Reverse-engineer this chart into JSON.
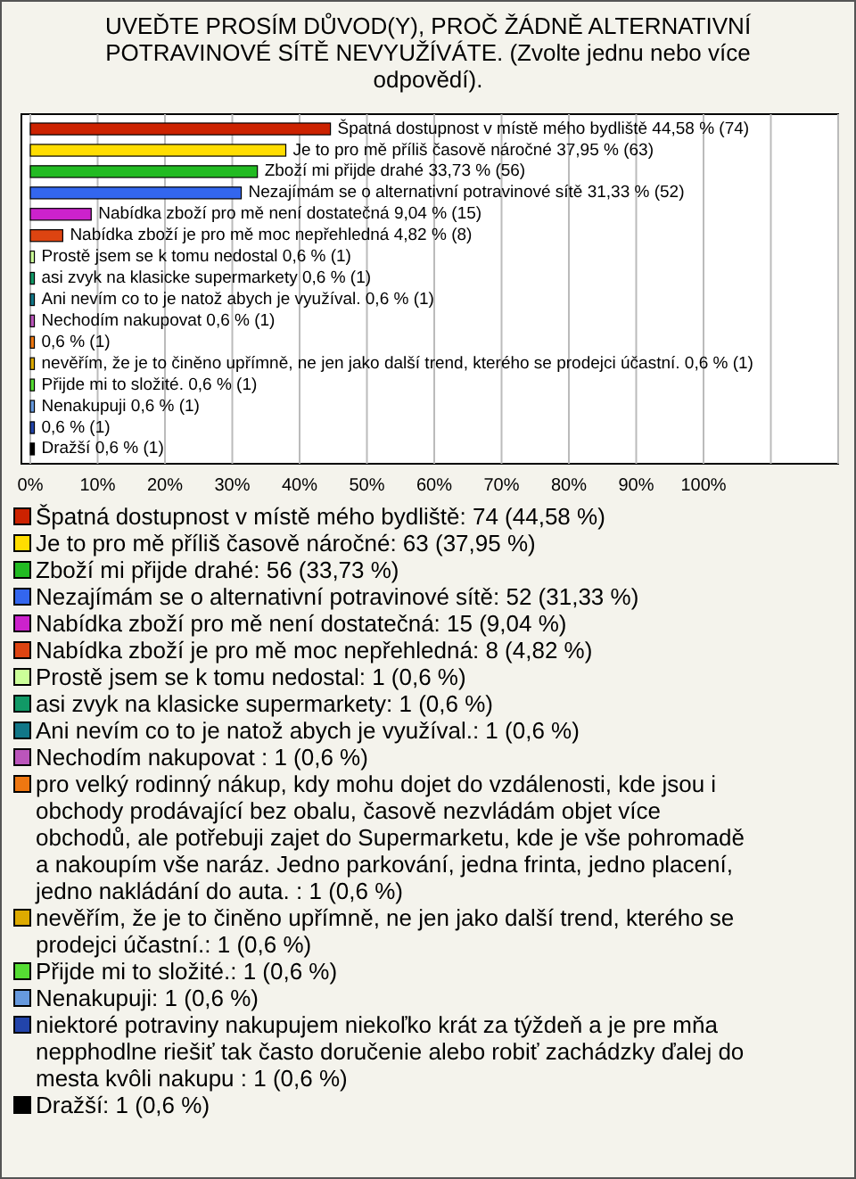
{
  "chart_data": {
    "type": "bar",
    "orientation": "horizontal",
    "title": "UVEĎTE PROSÍM DŮVOD(Y), PROČ ŽÁDNĚ ALTERNATIVNÍ POTRAVINOVÉ SÍTĚ NEVYUŽÍVÁTE. (Zvolte jednu nebo více odpovědí).",
    "categories": [
      "Špatná dostupnost v místě mého bydliště",
      "Je to pro mě příliš časově náročné",
      "Zboží mi přijde drahé",
      "Nezajímám se o alternativní potravinové sítě",
      "Nabídka zboží pro mě není dostatečná",
      "Nabídka zboží je pro mě moc nepřehledná",
      "Prostě jsem se k tomu nedostal",
      "asi zvyk na klasicke supermarkety",
      "Ani nevím co to je natož abych je využíval.",
      "Nechodím nakupovat",
      null,
      "nevěřím, že je to činěno upřímně, ne jen jako další trend, kterého se prodejci účastní.",
      "Přijde mi to složité.",
      "Nenakupuji",
      null,
      "Dražší"
    ],
    "values": [
      44.58,
      37.95,
      33.73,
      31.33,
      9.04,
      4.82,
      0.6,
      0.6,
      0.6,
      0.6,
      0.6,
      0.6,
      0.6,
      0.6,
      0.6,
      0.6
    ],
    "value_labels": [
      "44,58 % (74)",
      "37,95 % (63)",
      "33,73 % (56)",
      "31,33 % (52)",
      "9,04 % (15)",
      "4,82 % (8)",
      "0,6 % (1)",
      "0,6 % (1)",
      "0,6 % (1)",
      "0,6 % (1)",
      "0,6 % (1)",
      "0,6 % (1)",
      "0,6 % (1)",
      "0,6 % (1)",
      "0,6 % (1)",
      "0,6 % (1)"
    ],
    "colors": [
      "#cc2200",
      "#ffdd00",
      "#22bb22",
      "#3366ee",
      "#cc22cc",
      "#dd4411",
      "#ccff99",
      "#119966",
      "#117788",
      "#bb55bb",
      "#ee7711",
      "#ddaa00",
      "#55dd33",
      "#6699dd",
      "#2244aa",
      "#000000"
    ],
    "xlim": [
      0,
      120
    ],
    "xticks": [
      {
        "value": 0,
        "label": "0%"
      },
      {
        "value": 10,
        "label": "10%"
      },
      {
        "value": 20,
        "label": "20%"
      },
      {
        "value": 30,
        "label": "30%"
      },
      {
        "value": 40,
        "label": "40%"
      },
      {
        "value": 50,
        "label": "50%"
      },
      {
        "value": 60,
        "label": "60%"
      },
      {
        "value": 70,
        "label": "70%"
      },
      {
        "value": 80,
        "label": "80%"
      },
      {
        "value": 90,
        "label": "90%"
      },
      {
        "value": 100,
        "label": "100%"
      },
      {
        "value": 110,
        "label": null
      },
      {
        "value": 120,
        "label": null
      }
    ],
    "grid": "x",
    "annotations": [
      "Špatná dostupnost v místě mého bydliště: 74 (44,58 %)",
      "Je to pro mě příliš časově náročné: 63 (37,95 %)",
      "Zboží mi přijde drahé: 56 (33,73 %)",
      "Nezajímám se o alternativní potravinové sítě: 52 (31,33 %)",
      "Nabídka zboží pro mě není dostatečná: 15 (9,04 %)",
      "Nabídka zboží je pro mě moc nepřehledná: 8 (4,82 %)",
      "Prostě jsem se k tomu nedostal: 1 (0,6 %)",
      "asi zvyk na klasicke supermarkety: 1 (0,6 %)",
      "Ani nevím co to je natož abych je využíval.: 1 (0,6 %)",
      "Nechodím nakupovat : 1 (0,6 %)",
      "pro velký rodinný nákup, kdy mohu dojet do vzdálenosti, kde jsou i obchody prodávající bez obalu, časově nezvládám objet více obchodů, ale potřebuji zajet do Supermarketu, kde je vše pohromadě a nakoupím vše naráz. Jedno parkování, jedna frinta, jedno placení, jedno nakládání do auta. : 1 (0,6 %)",
      "nevěřím, že je to činěno upřímně, ne jen jako další trend, kterého se prodejci účastní.: 1 (0,6 %)",
      "Přijde mi to složité.: 1 (0,6 %)",
      "Nenakupuji: 1 (0,6 %)",
      "niektoré potraviny nakupujem niekoľko krát za týždeň a je pre mňa nepphodlne riešiť tak často doručenie alebo robiť zachádzky ďalej do mesta kvôli nakupu : 1 (0,6 %)",
      "Dražší: 1 (0,6 %)"
    ]
  }
}
